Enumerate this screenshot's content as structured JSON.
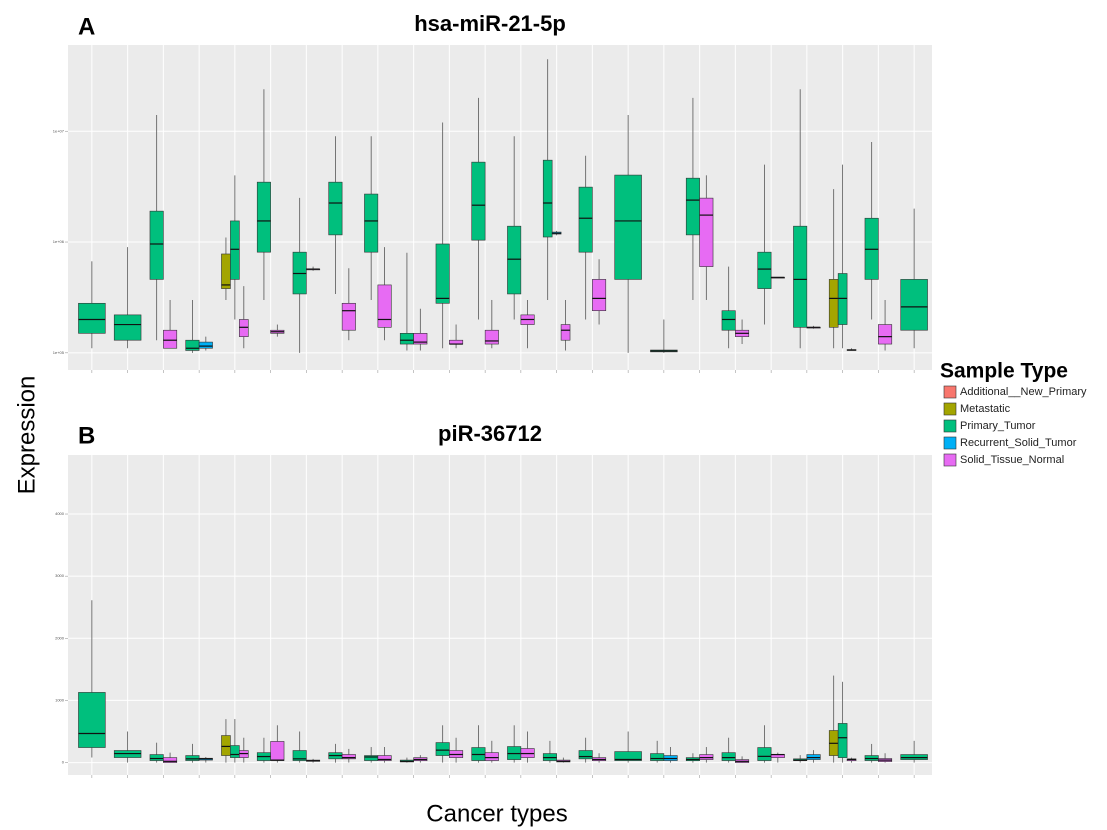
{
  "ylabel": "Expression",
  "xlabel": "Cancer types",
  "legend": {
    "title": "Sample Type",
    "position": "right"
  },
  "chart_data": [
    {
      "type": "box",
      "panel": "A",
      "title": "hsa-miR-21-5p",
      "log": true,
      "grid": true,
      "ylim": [
        70000,
        60000000
      ],
      "yticks": [
        {
          "value": 100000,
          "label": "1e+05"
        },
        {
          "value": 1000000,
          "label": "1e+06"
        },
        {
          "value": 10000000,
          "label": "1e+07"
        }
      ],
      "categories": [
        null,
        null,
        null,
        null,
        null,
        null,
        null,
        null,
        null,
        null,
        null,
        null,
        null,
        null,
        null,
        null,
        null,
        null,
        null,
        null,
        null,
        null,
        null,
        null
      ],
      "series": [
        {
          "name": "Additional__New_Primary",
          "color": "#F8766D",
          "values": [
            null,
            null,
            null,
            null,
            null,
            null,
            null,
            null,
            null,
            null,
            null,
            null,
            null,
            null,
            null,
            null,
            null,
            null,
            null,
            null,
            null,
            null,
            null,
            null
          ]
        },
        {
          "name": "Metastatic",
          "color": "#A3A500",
          "values": [
            null,
            null,
            null,
            null,
            [
              300000,
              380000,
              410000,
              780000,
              1100000
            ],
            null,
            null,
            null,
            null,
            null,
            null,
            null,
            null,
            null,
            null,
            null,
            null,
            null,
            null,
            null,
            null,
            [
              110000,
              170000,
              310000,
              460000,
              3000000
            ],
            null,
            null
          ]
        },
        {
          "name": "Primary_Tumor",
          "color": "#00BF7D",
          "values": [
            [
              110000,
              150000,
              200000,
              280000,
              670000
            ],
            [
              110000,
              130000,
              180000,
              220000,
              900000
            ],
            [
              130000,
              460000,
              960000,
              1900000,
              14000000
            ],
            [
              100000,
              105000,
              110000,
              130000,
              300000
            ],
            [
              200000,
              460000,
              860000,
              1550000,
              4000000
            ],
            [
              300000,
              810000,
              1550000,
              3470000,
              23900000
            ],
            [
              100000,
              340000,
              520000,
              810000,
              2500000
            ],
            [
              340000,
              1160000,
              2250000,
              3470000,
              9000000
            ],
            [
              300000,
              810000,
              1550000,
              2710000,
              9000000
            ],
            [
              105000,
              120000,
              130000,
              150000,
              800000
            ],
            [
              110000,
              280000,
              310000,
              960000,
              12000000
            ],
            [
              200000,
              1040000,
              2150000,
              5260000,
              20000000
            ],
            [
              200000,
              340000,
              700000,
              1390000,
              9000000
            ],
            [
              300000,
              1110000,
              2250000,
              5480000,
              44600000
            ],
            [
              200000,
              810000,
              1640000,
              3130000,
              6000000
            ],
            [
              100000,
              460000,
              1550000,
              4020000,
              14000000
            ],
            [
              100000,
              102000,
              104000,
              106000,
              200000
            ],
            [
              300000,
              1160000,
              2390000,
              3770000,
              20000000
            ],
            [
              110000,
              160000,
              200000,
              240000,
              600000
            ],
            [
              180000,
              380000,
              570000,
              810000,
              5000000
            ],
            [
              110000,
              170000,
              460000,
              1390000,
              23900000
            ],
            [
              110000,
              180000,
              310000,
              520000,
              5000000
            ],
            [
              200000,
              460000,
              860000,
              1640000,
              8000000
            ],
            [
              110000,
              160000,
              260000,
              460000,
              2000000
            ]
          ]
        },
        {
          "name": "Recurrent_Solid_Tumor",
          "color": "#00B0F6",
          "values": [
            null,
            null,
            null,
            [
              105000,
              110000,
              115000,
              125000,
              140000
            ],
            null,
            null,
            null,
            null,
            null,
            null,
            null,
            null,
            null,
            [
              1150000,
              1180000,
              1200000,
              1230000,
              1260000
            ],
            null,
            null,
            null,
            null,
            null,
            null,
            null,
            null,
            null,
            null
          ]
        },
        {
          "name": "Solid_Tissue_Normal",
          "color": "#E76BF3",
          "values": [
            null,
            null,
            [
              110000,
              110000,
              130000,
              160000,
              300000
            ],
            null,
            [
              110000,
              140000,
              170000,
              200000,
              400000
            ],
            [
              140000,
              150000,
              155000,
              160000,
              180000
            ],
            [
              550000,
              570000,
              570000,
              570000,
              600000
            ],
            [
              130000,
              160000,
              240000,
              280000,
              580000
            ],
            [
              130000,
              170000,
              200000,
              410000,
              900000
            ],
            [
              105000,
              120000,
              125000,
              150000,
              250000
            ],
            [
              110000,
              120000,
              120000,
              130000,
              180000
            ],
            [
              110000,
              120000,
              128000,
              160000,
              300000
            ],
            [
              110000,
              180000,
              200000,
              220000,
              300000
            ],
            [
              105000,
              130000,
              160000,
              180000,
              300000
            ],
            [
              180000,
              240000,
              310000,
              460000,
              700000
            ],
            null,
            null,
            [
              300000,
              600000,
              1750000,
              2490000,
              4000000
            ],
            [
              120000,
              140000,
              150000,
              160000,
              200000
            ],
            [
              480000,
              480000,
              480000,
              480000,
              480000
            ],
            [
              165000,
              170000,
              170000,
              170000,
              175000
            ],
            [
              105000,
              105000,
              106000,
              107000,
              110000
            ],
            [
              105000,
              120000,
              140000,
              180000,
              300000
            ],
            null
          ]
        }
      ]
    },
    {
      "type": "box",
      "panel": "B",
      "title": "piR-36712",
      "log": false,
      "grid": true,
      "ylim": [
        -200,
        4950
      ],
      "yticks": [
        0,
        1000,
        2000,
        3000,
        4000
      ],
      "categories": [
        null,
        null,
        null,
        null,
        null,
        null,
        null,
        null,
        null,
        null,
        null,
        null,
        null,
        null,
        null,
        null,
        null,
        null,
        null,
        null,
        null,
        null,
        null,
        null
      ],
      "series": [
        {
          "name": "Additional__New_Primary",
          "color": "#F8766D",
          "values": [
            null,
            null,
            null,
            null,
            null,
            null,
            null,
            null,
            null,
            null,
            null,
            null,
            null,
            null,
            null,
            null,
            null,
            null,
            null,
            null,
            null,
            null,
            null,
            null
          ]
        },
        {
          "name": "Metastatic",
          "color": "#A3A500",
          "values": [
            null,
            null,
            null,
            null,
            [
              0,
              113,
              260,
              435,
              700
            ],
            null,
            null,
            null,
            null,
            null,
            null,
            null,
            null,
            null,
            null,
            null,
            null,
            null,
            null,
            null,
            null,
            [
              0,
              113,
              310,
              516,
              1400
            ],
            null,
            null
          ]
        },
        {
          "name": "Primary_Tumor",
          "color": "#00BF7D",
          "values": [
            [
              81,
              242,
              468,
              1129,
              2613
            ],
            [
              0,
              81,
              145,
              194,
              500
            ],
            [
              0,
              32,
              65,
              129,
              320
            ],
            [
              0,
              32,
              60,
              113,
              300
            ],
            [
              0,
              80,
              130,
              274,
              700
            ],
            [
              0,
              32,
              97,
              160,
              400
            ],
            [
              0,
              32,
              60,
              194,
              500
            ],
            [
              0,
              60,
              113,
              160,
              300
            ],
            [
              0,
              32,
              90,
              113,
              250
            ],
            [
              0,
              10,
              20,
              40,
              80
            ],
            [
              0,
              113,
              200,
              322,
              600
            ],
            [
              0,
              32,
              130,
              242,
              600
            ],
            [
              0,
              48,
              145,
              258,
              600
            ],
            [
              0,
              32,
              80,
              145,
              350
            ],
            [
              0,
              60,
              97,
              194,
              400
            ],
            [
              0,
              32,
              50,
              177,
              500
            ],
            [
              0,
              32,
              65,
              145,
              350
            ],
            [
              0,
              30,
              50,
              80,
              150
            ],
            [
              0,
              32,
              80,
              160,
              400
            ],
            [
              0,
              32,
              100,
              242,
              600
            ],
            [
              0,
              30,
              40,
              60,
              120
            ],
            [
              0,
              80,
              400,
              630,
              1300
            ],
            [
              0,
              32,
              65,
              113,
              300
            ],
            [
              0,
              48,
              80,
              129,
              350
            ]
          ]
        },
        {
          "name": "Recurrent_Solid_Tumor",
          "color": "#00B0F6",
          "values": [
            null,
            null,
            null,
            [
              0,
              40,
              60,
              70,
              90
            ],
            null,
            null,
            null,
            null,
            null,
            null,
            null,
            null,
            null,
            null,
            null,
            null,
            [
              0,
              32,
              65,
              113,
              250
            ],
            null,
            null,
            null,
            [
              0,
              48,
              80,
              129,
              200
            ],
            null,
            null,
            null
          ]
        },
        {
          "name": "Solid_Tissue_Normal",
          "color": "#E76BF3",
          "values": [
            null,
            null,
            [
              0,
              0,
              20,
              80,
              160
            ],
            null,
            [
              0,
              80,
              145,
              194,
              400
            ],
            [
              0,
              32,
              40,
              340,
              600
            ],
            [
              0,
              20,
              30,
              40,
              60
            ],
            [
              0,
              60,
              80,
              130,
              220
            ],
            [
              0,
              32,
              50,
              113,
              250
            ],
            [
              0,
              30,
              50,
              80,
              120
            ],
            [
              0,
              80,
              130,
              194,
              400
            ],
            [
              0,
              32,
              80,
              160,
              350
            ],
            [
              0,
              80,
              145,
              226,
              500
            ],
            [
              0,
              10,
              20,
              40,
              80
            ],
            [
              0,
              30,
              50,
              80,
              150
            ],
            null,
            null,
            [
              0,
              48,
              80,
              129,
              250
            ],
            [
              0,
              0,
              20,
              48,
              100
            ],
            [
              0,
              80,
              129,
              130,
              160
            ],
            null,
            [
              0,
              30,
              50,
              60,
              80
            ],
            [
              0,
              16,
              40,
              65,
              150
            ],
            null
          ]
        }
      ]
    }
  ]
}
